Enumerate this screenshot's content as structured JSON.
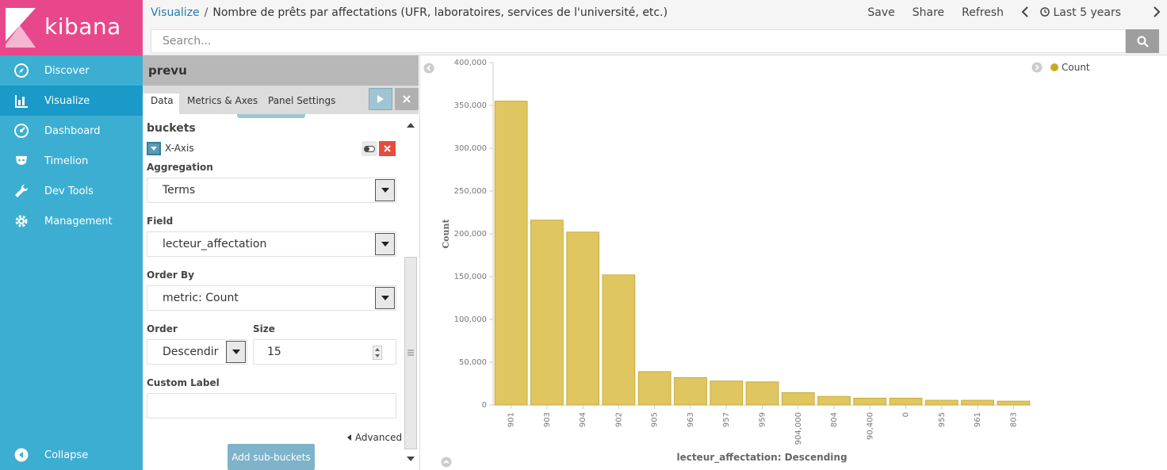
{
  "app": {
    "logo_text": "kibana"
  },
  "sidebar": {
    "items": [
      {
        "label": "Discover",
        "icon": "compass-icon"
      },
      {
        "label": "Visualize",
        "icon": "bar-chart-icon"
      },
      {
        "label": "Dashboard",
        "icon": "dashboard-icon"
      },
      {
        "label": "Timelion",
        "icon": "timelion-icon"
      },
      {
        "label": "Dev Tools",
        "icon": "wrench-icon"
      },
      {
        "label": "Management",
        "icon": "gear-icon"
      }
    ],
    "collapse_label": "Collapse"
  },
  "header": {
    "breadcrumb_root": "Visualize",
    "breadcrumb_separator": "/",
    "title": "Nombre de prêts par affectations (UFR, laboratoires, services de l'université, etc.)",
    "save_label": "Save",
    "share_label": "Share",
    "refresh_label": "Refresh",
    "time_label": "Last 5 years"
  },
  "search": {
    "placeholder": "Search..."
  },
  "editor": {
    "title": "prevu",
    "tabs": [
      "Data",
      "Metrics & Axes",
      "Panel Settings"
    ],
    "buckets_heading": "buckets",
    "x_axis_label": "X-Axis",
    "aggregation_label": "Aggregation",
    "aggregation_value": "Terms",
    "field_label": "Field",
    "field_value": "lecteur_affectation",
    "order_by_label": "Order By",
    "order_by_value": "metric: Count",
    "order_label": "Order",
    "order_value": "Descendir",
    "size_label": "Size",
    "size_value": "15",
    "custom_label_label": "Custom Label",
    "custom_label_value": "",
    "advanced_label": "Advanced",
    "add_sub_buckets_label": "Add sub-buckets"
  },
  "colors": {
    "bar": "#e0c661",
    "bar_stroke": "#c9ab3b",
    "sidebar": "#3caed2",
    "logo_bg": "#e8488b",
    "link": "#1f7dab"
  },
  "chart_data": {
    "type": "bar",
    "categories": [
      "901",
      "903",
      "904",
      "902",
      "905",
      "963",
      "957",
      "959",
      "904,000",
      "804",
      "90,400",
      "0",
      "955",
      "961",
      "803"
    ],
    "series": [
      {
        "name": "Count",
        "values": [
          355000,
          216000,
          202000,
          152000,
          39000,
          32000,
          28000,
          27000,
          14500,
          10000,
          8000,
          8000,
          5500,
          5500,
          4500
        ]
      }
    ],
    "y_ticks": [
      "0",
      "50,000",
      "100,000",
      "150,000",
      "200,000",
      "250,000",
      "300,000",
      "350,000",
      "400,000"
    ],
    "ylim": [
      0,
      400000
    ],
    "xlabel": "lecteur_affectation: Descending",
    "ylabel": "Count",
    "legend_position": "top-right"
  }
}
